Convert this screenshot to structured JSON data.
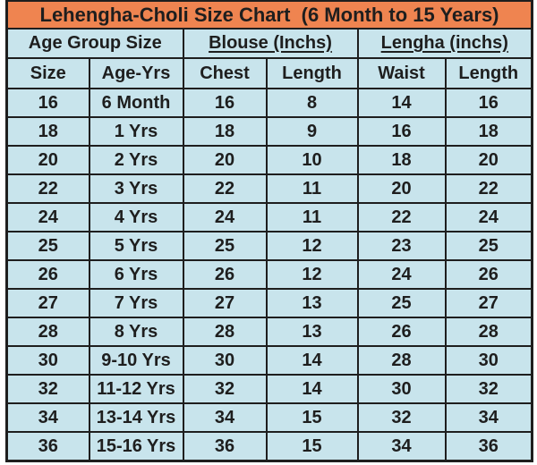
{
  "colors": {
    "header_bg": "#EF8450",
    "cell_bg": "#C8E4EC",
    "border": "#1E1E1E",
    "text": "#1E1E1E"
  },
  "chart_data": {
    "type": "table",
    "title": "Lehengha-Choli Size Chart  (6 Month to 15 Years)",
    "group_headers": [
      {
        "label": "Age Group Size",
        "underline": false
      },
      {
        "label": "Blouse (Inchs)",
        "underline": true
      },
      {
        "label": "Lengha (inchs)",
        "underline": true
      }
    ],
    "columns": [
      "Size",
      "Age-Yrs",
      "Chest",
      "Length",
      "Waist",
      "Length"
    ],
    "rows": [
      [
        "16",
        "6 Month",
        "16",
        "8",
        "14",
        "16"
      ],
      [
        "18",
        "1 Yrs",
        "18",
        "9",
        "16",
        "18"
      ],
      [
        "20",
        "2 Yrs",
        "20",
        "10",
        "18",
        "20"
      ],
      [
        "22",
        "3 Yrs",
        "22",
        "11",
        "20",
        "22"
      ],
      [
        "24",
        "4 Yrs",
        "24",
        "11",
        "22",
        "24"
      ],
      [
        "25",
        "5 Yrs",
        "25",
        "12",
        "23",
        "25"
      ],
      [
        "26",
        "6 Yrs",
        "26",
        "12",
        "24",
        "26"
      ],
      [
        "27",
        "7 Yrs",
        "27",
        "13",
        "25",
        "27"
      ],
      [
        "28",
        "8 Yrs",
        "28",
        "13",
        "26",
        "28"
      ],
      [
        "30",
        "9-10 Yrs",
        "30",
        "14",
        "28",
        "30"
      ],
      [
        "32",
        "11-12 Yrs",
        "32",
        "14",
        "30",
        "32"
      ],
      [
        "34",
        "13-14 Yrs",
        "34",
        "15",
        "32",
        "34"
      ],
      [
        "36",
        "15-16 Yrs",
        "36",
        "15",
        "34",
        "36"
      ]
    ]
  }
}
